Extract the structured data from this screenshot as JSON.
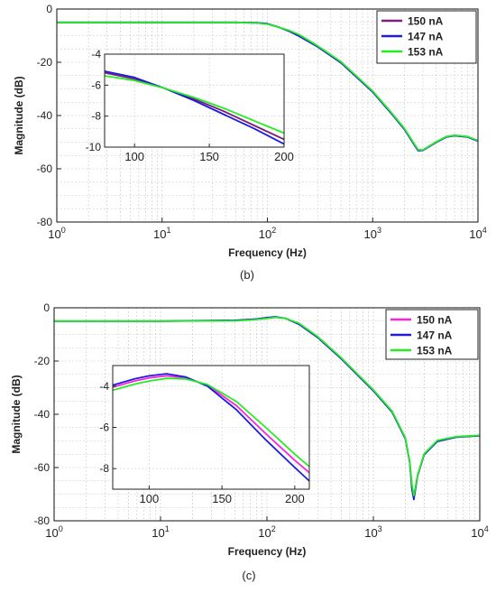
{
  "chart_data": [
    {
      "type": "line",
      "panel_label": "(b)",
      "xlabel": "Frequency (Hz)",
      "ylabel": "Magnitude (dB)",
      "xscale": "log",
      "xlim": [
        1,
        10000
      ],
      "ylim": [
        -80,
        0
      ],
      "xticks": [
        {
          "v": 1,
          "base": "10",
          "exp": "0"
        },
        {
          "v": 10,
          "base": "10",
          "exp": "1"
        },
        {
          "v": 100,
          "base": "10",
          "exp": "2"
        },
        {
          "v": 1000,
          "base": "10",
          "exp": "3"
        },
        {
          "v": 10000,
          "base": "10",
          "exp": "4"
        }
      ],
      "yticks": [
        0,
        -20,
        -40,
        -60,
        -80
      ],
      "grid": true,
      "legend_position": "top-right",
      "series": [
        {
          "name": "150 nA",
          "color": "#7a1f7a",
          "x": [
            1,
            10,
            50,
            80,
            100,
            130,
            160,
            200,
            300,
            500,
            1000,
            1500,
            2000,
            2500,
            2700,
            3000,
            4000,
            5000,
            6000,
            8000,
            10000
          ],
          "y": [
            -5.0,
            -5.0,
            -5.0,
            -5.2,
            -5.6,
            -6.9,
            -8.2,
            -10.0,
            -14.0,
            -20.0,
            -31.0,
            -39.0,
            -45.0,
            -51.0,
            -53.0,
            -53.0,
            -50.0,
            -48.0,
            -47.5,
            -48.0,
            -49.5
          ]
        },
        {
          "name": "147 nA",
          "color": "#1c1ce0",
          "x": [
            1,
            10,
            50,
            80,
            100,
            130,
            160,
            200,
            300,
            500,
            1000,
            1500,
            2000,
            2500,
            2700,
            3000,
            4000,
            5000,
            6000,
            8000,
            10000
          ],
          "y": [
            -5.0,
            -5.0,
            -5.0,
            -5.2,
            -5.5,
            -6.9,
            -8.3,
            -10.2,
            -14.2,
            -20.2,
            -31.2,
            -39.2,
            -45.2,
            -51.2,
            -53.2,
            -53.1,
            -50.1,
            -48.1,
            -47.6,
            -48.1,
            -49.6
          ]
        },
        {
          "name": "153 nA",
          "color": "#22ee22",
          "x": [
            1,
            10,
            50,
            80,
            100,
            130,
            160,
            200,
            300,
            500,
            1000,
            1500,
            2000,
            2500,
            2700,
            3000,
            4000,
            5000,
            6000,
            8000,
            10000
          ],
          "y": [
            -5.0,
            -5.0,
            -5.0,
            -5.3,
            -5.7,
            -6.9,
            -8.0,
            -9.6,
            -13.8,
            -19.8,
            -30.8,
            -38.8,
            -44.8,
            -50.8,
            -52.8,
            -52.9,
            -49.9,
            -47.9,
            -47.4,
            -47.9,
            -49.4
          ]
        }
      ],
      "inset": {
        "xscale": "linear",
        "xlim": [
          80,
          200
        ],
        "ylim": [
          -10,
          -4
        ],
        "xticks": [
          100,
          150,
          200
        ],
        "yticks": [
          -4,
          -6,
          -8,
          -10
        ],
        "series": [
          {
            "name": "150 nA",
            "x": [
              80,
              100,
              120,
              140,
              160,
              180,
              200
            ],
            "y": [
              -5.2,
              -5.6,
              -6.2,
              -6.9,
              -7.7,
              -8.6,
              -9.5
            ]
          },
          {
            "name": "147 nA",
            "x": [
              80,
              100,
              120,
              140,
              160,
              180,
              200
            ],
            "y": [
              -5.1,
              -5.5,
              -6.2,
              -7.0,
              -7.9,
              -8.8,
              -9.8
            ]
          },
          {
            "name": "153 nA",
            "x": [
              80,
              100,
              120,
              140,
              160,
              180,
              200
            ],
            "y": [
              -5.4,
              -5.7,
              -6.2,
              -6.8,
              -7.5,
              -8.3,
              -9.1
            ]
          }
        ]
      }
    },
    {
      "type": "line",
      "panel_label": "(c)",
      "xlabel": "Frequency (Hz)",
      "ylabel": "Magnitude (dB)",
      "xscale": "log",
      "xlim": [
        1,
        10000
      ],
      "ylim": [
        -80,
        0
      ],
      "xticks": [
        {
          "v": 1,
          "base": "10",
          "exp": "0"
        },
        {
          "v": 10,
          "base": "10",
          "exp": "1"
        },
        {
          "v": 100,
          "base": "10",
          "exp": "2"
        },
        {
          "v": 1000,
          "base": "10",
          "exp": "3"
        },
        {
          "v": 10000,
          "base": "10",
          "exp": "4"
        }
      ],
      "yticks": [
        0,
        -20,
        -40,
        -60,
        -80
      ],
      "grid": true,
      "legend_position": "top-right",
      "series": [
        {
          "name": "150 nA",
          "color": "#ff22dd",
          "x": [
            1,
            10,
            50,
            80,
            100,
            120,
            150,
            200,
            300,
            500,
            1000,
            1500,
            2000,
            2200,
            2300,
            2400,
            2600,
            3000,
            4000,
            6000,
            10000
          ],
          "y": [
            -5.0,
            -5.0,
            -4.8,
            -4.3,
            -3.9,
            -3.5,
            -4.0,
            -6.0,
            -11.0,
            -19.0,
            -31.0,
            -39.0,
            -49.0,
            -58.0,
            -67.0,
            -71.0,
            -63.0,
            -55.0,
            -50.0,
            -48.5,
            -48.0
          ]
        },
        {
          "name": "147 nA",
          "color": "#1c1ce0",
          "x": [
            1,
            10,
            50,
            80,
            100,
            120,
            150,
            200,
            300,
            500,
            1000,
            1500,
            2000,
            2200,
            2300,
            2400,
            2600,
            3000,
            4000,
            6000,
            10000
          ],
          "y": [
            -5.0,
            -5.0,
            -4.7,
            -4.2,
            -3.7,
            -3.4,
            -4.0,
            -6.2,
            -11.2,
            -19.2,
            -31.2,
            -39.2,
            -49.2,
            -58.2,
            -68.0,
            -72.0,
            -63.2,
            -55.2,
            -50.2,
            -48.6,
            -48.1
          ]
        },
        {
          "name": "153 nA",
          "color": "#22ee22",
          "x": [
            1,
            10,
            50,
            80,
            100,
            120,
            150,
            200,
            300,
            500,
            1000,
            1500,
            2000,
            2200,
            2300,
            2400,
            2600,
            3000,
            4000,
            6000,
            10000
          ],
          "y": [
            -5.0,
            -5.0,
            -4.9,
            -4.4,
            -4.0,
            -3.6,
            -4.0,
            -5.8,
            -10.8,
            -18.8,
            -30.8,
            -38.8,
            -48.8,
            -57.8,
            -66.0,
            -70.5,
            -62.8,
            -54.8,
            -49.8,
            -48.4,
            -47.9
          ]
        }
      ],
      "inset": {
        "xscale": "linear",
        "xlim": [
          75,
          210
        ],
        "ylim": [
          -9,
          -3
        ],
        "xticks": [
          100,
          150,
          200
        ],
        "yticks": [
          -4,
          -6,
          -8
        ],
        "series": [
          {
            "name": "150 nA",
            "x": [
              75,
              90,
              100,
              112,
              125,
              140,
              160,
              180,
              200,
              210
            ],
            "y": [
              -4.05,
              -3.75,
              -3.6,
              -3.5,
              -3.6,
              -3.95,
              -4.95,
              -6.3,
              -7.6,
              -8.2
            ]
          },
          {
            "name": "147 nA",
            "x": [
              75,
              90,
              100,
              112,
              125,
              140,
              160,
              180,
              200,
              210
            ],
            "y": [
              -3.95,
              -3.65,
              -3.5,
              -3.4,
              -3.55,
              -4.0,
              -5.15,
              -6.6,
              -7.95,
              -8.6
            ]
          },
          {
            "name": "153 nA",
            "x": [
              75,
              90,
              100,
              112,
              125,
              140,
              160,
              180,
              200,
              210
            ],
            "y": [
              -4.2,
              -3.9,
              -3.75,
              -3.62,
              -3.65,
              -3.92,
              -4.75,
              -6.0,
              -7.3,
              -7.9
            ]
          }
        ]
      }
    }
  ]
}
